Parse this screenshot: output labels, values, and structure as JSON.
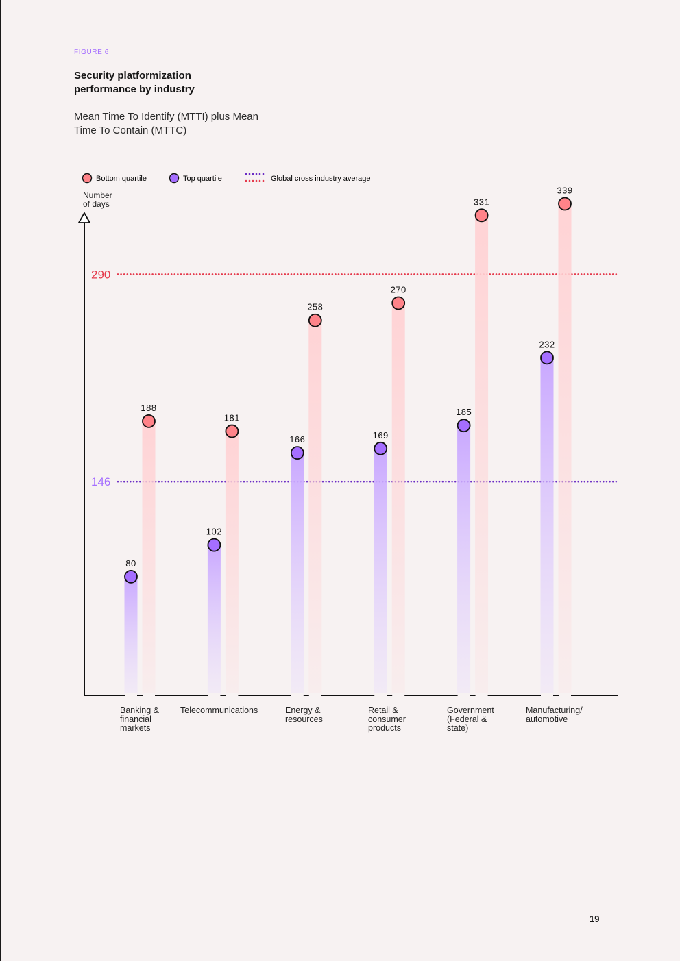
{
  "figure_label": "FIGURE 6",
  "title": "Security platformization performance by industry",
  "subtitle": "Mean Time To Identify (MTTI) plus Mean Time To Contain (MTTC)",
  "page_number": "19",
  "colors": {
    "bottom_quartile": "#ff8389",
    "bottom_line": "#e5394b",
    "top_quartile": "#a56eff",
    "top_line": "#6929c4",
    "background": "#f7f2f2"
  },
  "legend": {
    "bottom": "Bottom quartile",
    "top": "Top quartile",
    "average": "Global cross industry average"
  },
  "chart_data": {
    "type": "bar",
    "ylabel": "Number of days",
    "ylim": [
      0,
      350
    ],
    "categories": [
      "Banking & financial markets",
      "Telecommunications",
      "Energy & resources",
      "Retail & consumer products",
      "Government (Federal & state)",
      "Manufacturing/ automotive"
    ],
    "category_label_lines": [
      [
        "Banking &",
        "financial",
        "markets"
      ],
      [
        "Telecommunications"
      ],
      [
        "Energy &",
        "resources"
      ],
      [
        "Retail &",
        "consumer",
        "products"
      ],
      [
        "Government",
        "(Federal &",
        "state)"
      ],
      [
        "Manufacturing/",
        "automotive"
      ]
    ],
    "series": [
      {
        "name": "Top quartile",
        "values": [
          80,
          102,
          166,
          169,
          185,
          232
        ]
      },
      {
        "name": "Bottom quartile",
        "values": [
          188,
          181,
          258,
          270,
          331,
          339
        ]
      }
    ],
    "reference_lines": [
      {
        "name": "Global cross industry average (Bottom quartile)",
        "value": 290
      },
      {
        "name": "Global cross industry average (Top quartile)",
        "value": 146
      }
    ]
  }
}
